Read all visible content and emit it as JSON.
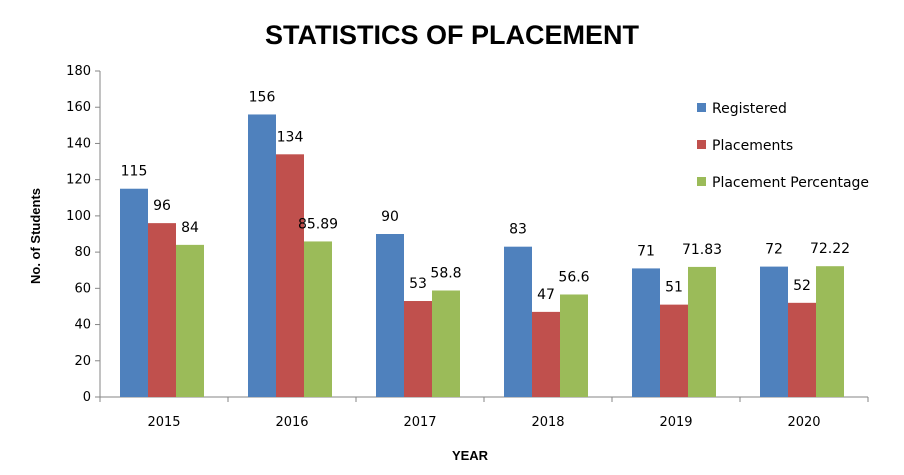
{
  "chart_data": {
    "type": "bar",
    "title": "STATISTICS OF PLACEMENT",
    "xlabel": "YEAR",
    "ylabel": "No. of Students",
    "categories": [
      "2015",
      "2016",
      "2017",
      "2018",
      "2019",
      "2020"
    ],
    "ylim": [
      0,
      180
    ],
    "yticks": [
      "0",
      "20",
      "40",
      "60",
      "80",
      "100",
      "120",
      "140",
      "160",
      "180"
    ],
    "grid": false,
    "legend_position": "right",
    "series": [
      {
        "name": "Registered",
        "color": "#4f81bd",
        "values": [
          115,
          156,
          90,
          83,
          71,
          72
        ],
        "labels": [
          "115",
          "156",
          "90",
          "83",
          "71",
          "72"
        ]
      },
      {
        "name": "Placements",
        "color": "#c0504d",
        "values": [
          96,
          134,
          53,
          47,
          51,
          52
        ],
        "labels": [
          "96",
          "134",
          "53",
          "47",
          "51",
          "52"
        ]
      },
      {
        "name": "Placement Percentage",
        "color": "#9bbb59",
        "values": [
          84,
          85.89,
          58.8,
          56.6,
          71.83,
          72.22
        ],
        "labels": [
          "84",
          "85.89",
          "58.8",
          "56.6",
          "71.83",
          "72.22"
        ]
      }
    ]
  }
}
